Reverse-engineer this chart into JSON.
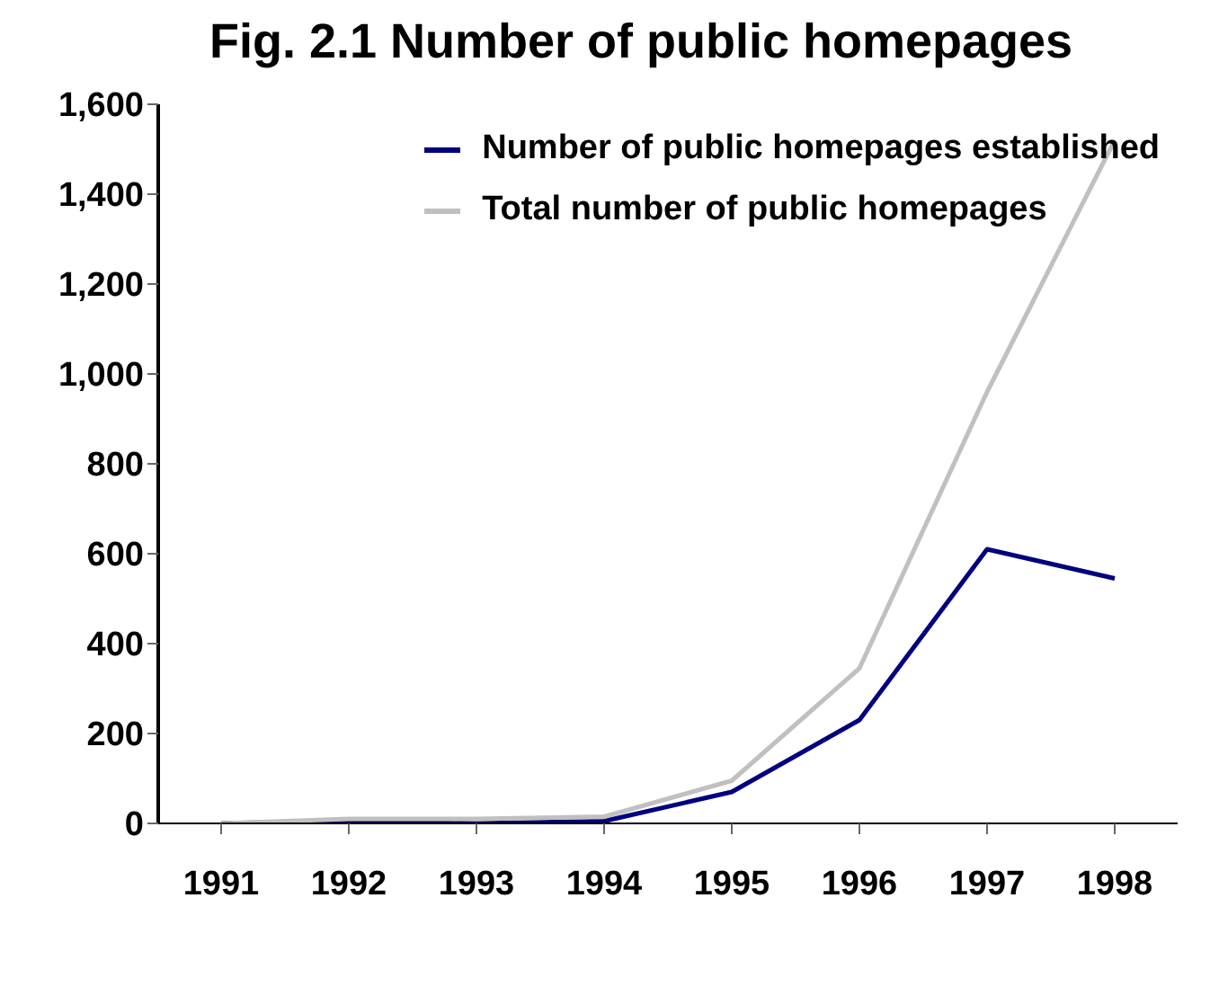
{
  "chart_data": {
    "type": "line",
    "title": "Fig. 2.1 Number of public homepages",
    "categories": [
      "1991",
      "1992",
      "1993",
      "1994",
      "1995",
      "1996",
      "1997",
      "1998"
    ],
    "series": [
      {
        "name": "Number of public homepages established",
        "color": "#000080",
        "values": [
          0,
          5,
          0,
          5,
          70,
          230,
          610,
          545
        ]
      },
      {
        "name": "Total number of public homepages",
        "color": "#c0c0c0",
        "values": [
          0,
          10,
          10,
          15,
          95,
          345,
          960,
          1520
        ]
      }
    ],
    "ylim": [
      0,
      1600
    ],
    "yticks": [
      0,
      200,
      400,
      600,
      800,
      {
        "value": 1000,
        "label": "1,000"
      },
      {
        "value": 1200,
        "label": "1,200"
      },
      {
        "value": 1400,
        "label": "1,400"
      },
      {
        "value": 1600,
        "label": "1,600"
      }
    ],
    "grid": false,
    "legend": "top right",
    "marker": "none",
    "line_style": "solid"
  }
}
